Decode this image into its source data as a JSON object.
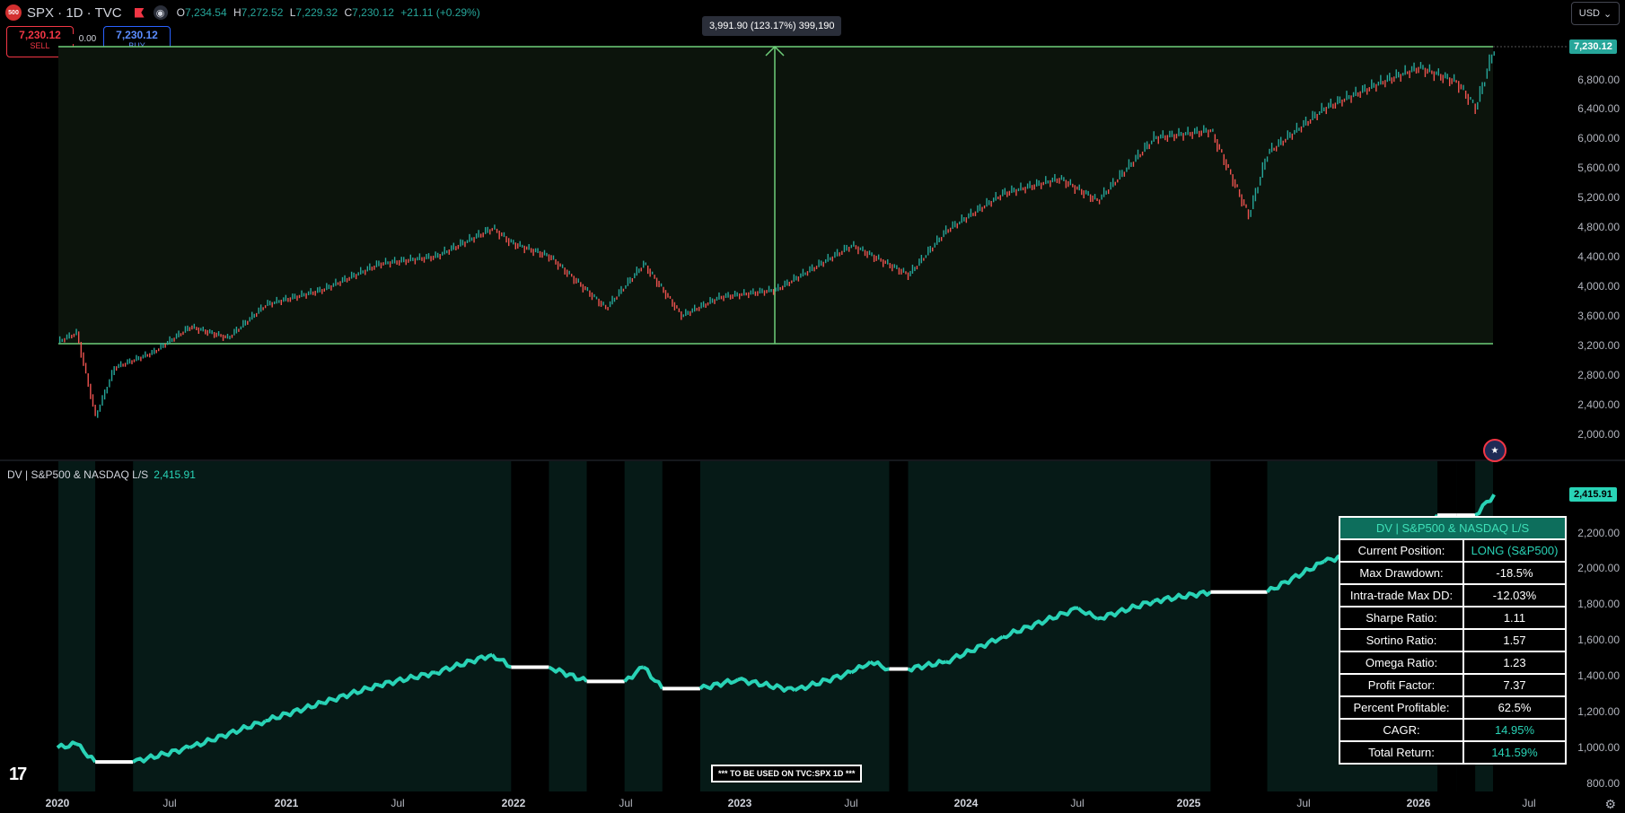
{
  "header": {
    "logo_text": "500",
    "title": "SPX · 1D · TVC",
    "ohlc": [
      {
        "label": "O",
        "value": "7,234.54"
      },
      {
        "label": "H",
        "value": "7,272.52"
      },
      {
        "label": "L",
        "value": "7,229.32"
      },
      {
        "label": "C",
        "value": "7,230.12"
      }
    ],
    "change": "+21.11 (+0.29%)"
  },
  "trade": {
    "sell_price": "7,230.12",
    "sell_label": "SELL",
    "buy_price": "7,230.12",
    "buy_label": "BUY",
    "spread": "0.00"
  },
  "measure_tooltip": "3,991.90 (123.17%) 399,190",
  "currency": "USD",
  "price_axis": {
    "ticks": [
      "6,800.00",
      "6,400.00",
      "6,000.00",
      "5,600.00",
      "5,200.00",
      "4,800.00",
      "4,400.00",
      "4,000.00",
      "3,600.00",
      "3,200.00",
      "2,800.00",
      "2,400.00",
      "2,000.00"
    ],
    "last_price": "7,230.12"
  },
  "indicator": {
    "title": "DV | S&P500 & NASDAQ L/S",
    "value": "2,415.91",
    "axis_ticks": [
      "2,200.00",
      "2,000.00",
      "1,800.00",
      "1,600.00",
      "1,400.00",
      "1,200.00",
      "1,000.00",
      "800.00"
    ],
    "note": "*** TO BE USED ON TVC:SPX 1D ***"
  },
  "stats_table": {
    "title": "DV | S&P500 & NASDAQ L/S",
    "rows": [
      {
        "label": "Current Position:",
        "value": "LONG (S&P500)",
        "accent": true
      },
      {
        "label": "Max Drawdown:",
        "value": "-18.5%",
        "accent": false
      },
      {
        "label": "Intra-trade Max DD:",
        "value": "-12.03%",
        "accent": false
      },
      {
        "label": "Sharpe Ratio:",
        "value": "1.11",
        "accent": false
      },
      {
        "label": "Sortino Ratio:",
        "value": "1.57",
        "accent": false
      },
      {
        "label": "Omega Ratio:",
        "value": "1.23",
        "accent": false
      },
      {
        "label": "Profit Factor:",
        "value": "7.37",
        "accent": false
      },
      {
        "label": "Percent Profitable:",
        "value": "62.5%",
        "accent": false
      },
      {
        "label": "CAGR:",
        "value": "14.95%",
        "accent": true
      },
      {
        "label": "Total Return:",
        "value": "141.59%",
        "accent": true
      }
    ]
  },
  "time_axis": [
    "2020",
    "Jul",
    "2021",
    "Jul",
    "2022",
    "Jul",
    "2023",
    "Jul",
    "2024",
    "Jul",
    "2025",
    "Jul",
    "2026",
    "Jul"
  ],
  "colors": {
    "up": "#26a69a",
    "down": "#ef5350",
    "equity": "#29d3b6",
    "flat": "#ffffff",
    "range_border": "#6fcf7a"
  },
  "icons": [
    "flag-icon",
    "eye-icon",
    "us-flag-icon",
    "gear-icon",
    "tradingview-logo-icon"
  ],
  "chart_data": [
    {
      "type": "line",
      "title": "SPX · 1D · TVC",
      "x": [
        "2020-01",
        "2020-02",
        "2020-03",
        "2020-04",
        "2020-06",
        "2020-08",
        "2020-10",
        "2020-12",
        "2021-03",
        "2021-06",
        "2021-09",
        "2021-12",
        "2022-01",
        "2022-03",
        "2022-06",
        "2022-08",
        "2022-10",
        "2022-12",
        "2023-03",
        "2023-06",
        "2023-07",
        "2023-10",
        "2023-12",
        "2024-03",
        "2024-06",
        "2024-08",
        "2024-11",
        "2025-02",
        "2025-04",
        "2025-05",
        "2025-08",
        "2025-11",
        "2026-01",
        "2026-03",
        "2026-04",
        "2026-05"
      ],
      "values": [
        3250,
        3370,
        2240,
        2900,
        3100,
        3450,
        3300,
        3750,
        3950,
        4300,
        4400,
        4780,
        4580,
        4400,
        3700,
        4300,
        3600,
        3850,
        3950,
        4400,
        4550,
        4150,
        4750,
        5250,
        5450,
        5150,
        6000,
        6100,
        4950,
        5800,
        6400,
        6750,
        6950,
        6750,
        6400,
        7230
      ],
      "ylim": [
        2000,
        7300
      ],
      "measure_range": {
        "low": 3238.22,
        "high": 7230.12,
        "change": "3,991.90 (123.17%)"
      }
    },
    {
      "type": "line",
      "title": "DV | S&P500 & NASDAQ L/S",
      "x": [
        "2020-01",
        "2020-02",
        "2020-03",
        "2020-05",
        "2020-08",
        "2020-12",
        "2021-03",
        "2021-06",
        "2021-09",
        "2021-12",
        "2022-01",
        "2022-03",
        "2022-05",
        "2022-07",
        "2022-08",
        "2022-09",
        "2022-11",
        "2023-01",
        "2023-04",
        "2023-07",
        "2023-08",
        "2023-09",
        "2023-10",
        "2023-12",
        "2024-03",
        "2024-07",
        "2024-08",
        "2024-11",
        "2025-02",
        "2025-04",
        "2025-05",
        "2025-08",
        "2025-11",
        "2026-01",
        "2026-02",
        "2026-03",
        "2026-04",
        "2026-05"
      ],
      "values": [
        1000,
        1020,
        920,
        920,
        1000,
        1150,
        1250,
        1350,
        1420,
        1520,
        1450,
        1450,
        1370,
        1370,
        1450,
        1330,
        1330,
        1380,
        1320,
        1420,
        1480,
        1440,
        1440,
        1480,
        1620,
        1780,
        1720,
        1820,
        1870,
        1870,
        1870,
        2040,
        2130,
        2200,
        2300,
        2300,
        2300,
        2415
      ],
      "ylim": [
        780,
        2450
      ],
      "value_label": "2,415.91"
    }
  ]
}
